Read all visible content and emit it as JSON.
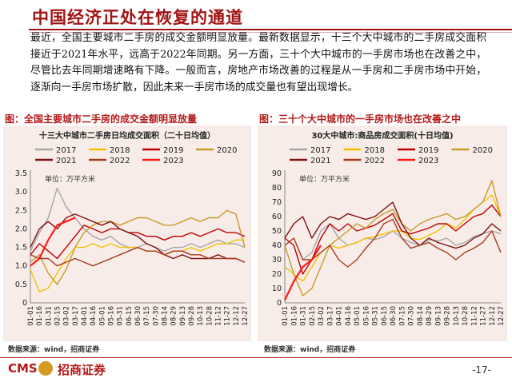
{
  "page": {
    "title": "中国经济正处在恢复的通道",
    "body": "最近，全国主要城市二手房的成交金额明显放量。最新数据显示，十三个大中城市的二手房成交面积接近于2021年水平，远高于2022年同期。另一方面，三十个大中城市的一手房市场也在改善之中，尽管比去年同期增速略有下降。一般而言，房地产市场改善的过程是从一手房和二手房市场中开始，逐渐向一手房市场扩散，因此未来一手房市场的成交量也有望出现增长。",
    "page_number": "-17-"
  },
  "footer": {
    "logo_text": "CMS",
    "logo_cn": "招商证券"
  },
  "left_panel": {
    "caption": "图：全国主要城市二手房的成交金额明显放量",
    "source": "数据来源：wind，招商证券"
  },
  "right_panel": {
    "caption": "图：三十个大中城市的一手房市场也在改善之中",
    "source": "数据来源：wind，招商证券"
  },
  "colors": {
    "2017": "#a6a6a6",
    "2018": "#f2c200",
    "2019": "#c00000",
    "2020": "#c89a2b",
    "2021": "#7f1212",
    "2022": "#a63a20",
    "2023": "#ff1a1a"
  },
  "chart_data": [
    {
      "type": "line",
      "title": "十三大中城市二手房日均成交面积（二十日均值）",
      "unit_label": "单位：万平方米",
      "ylim": [
        0,
        3.5
      ],
      "yticks": [
        "0",
        "0.5",
        "1.0",
        "1.5",
        "2.0",
        "2.5",
        "3.0",
        "3.5"
      ],
      "x_ticks": [
        "01-01",
        "01-16",
        "01-31",
        "02-15",
        "03-02",
        "03-17",
        "04-01",
        "04-16",
        "05-01",
        "05-16",
        "05-31",
        "06-15",
        "06-30",
        "07-15",
        "07-30",
        "08-14",
        "08-29",
        "09-13",
        "09-28",
        "10-13",
        "10-28",
        "11-12",
        "11-27",
        "12-12",
        "12-27"
      ],
      "series": [
        {
          "name": "2017",
          "values": [
            1.4,
            1.9,
            2.3,
            3.1,
            2.6,
            2.3,
            2.0,
            1.8,
            1.7,
            1.8,
            1.6,
            1.5,
            1.5,
            1.6,
            1.5,
            1.4,
            1.5,
            1.5,
            1.6,
            1.5,
            1.6,
            1.7,
            1.6,
            1.6,
            1.5
          ]
        },
        {
          "name": "2018",
          "values": [
            0.9,
            0.3,
            0.4,
            0.8,
            1.2,
            1.5,
            1.5,
            1.6,
            1.5,
            1.6,
            1.5,
            1.5,
            1.5,
            1.4,
            1.4,
            1.3,
            1.4,
            1.4,
            1.5,
            1.4,
            1.5,
            1.6,
            1.6,
            1.7,
            1.7
          ]
        },
        {
          "name": "2019",
          "values": [
            1.3,
            1.6,
            1.4,
            1.2,
            1.5,
            1.8,
            2.1,
            2.0,
            1.9,
            2.0,
            2.0,
            1.9,
            1.9,
            1.8,
            1.8,
            1.7,
            1.8,
            1.8,
            1.9,
            1.8,
            1.9,
            2.0,
            1.9,
            1.9,
            1.8
          ]
        },
        {
          "name": "2020",
          "values": [
            1.1,
            1.3,
            0.8,
            0.5,
            0.9,
            1.5,
            1.9,
            2.1,
            2.2,
            2.2,
            2.1,
            2.2,
            2.3,
            2.3,
            2.2,
            2.1,
            2.1,
            2.2,
            2.3,
            2.2,
            2.3,
            2.3,
            2.5,
            2.4,
            1.5
          ]
        },
        {
          "name": "2021",
          "values": [
            1.5,
            2.0,
            2.2,
            2.0,
            2.3,
            2.4,
            2.3,
            2.2,
            2.1,
            2.2,
            2.0,
            1.9,
            1.8,
            1.6,
            1.5,
            1.3,
            1.2,
            1.3,
            1.2,
            1.2,
            1.2,
            1.3,
            1.2,
            1.2,
            1.1
          ]
        },
        {
          "name": "2022",
          "values": [
            1.3,
            1.2,
            1.2,
            1.0,
            1.1,
            1.2,
            1.1,
            1.0,
            1.1,
            1.2,
            1.3,
            1.4,
            1.5,
            1.4,
            1.4,
            1.3,
            1.4,
            1.4,
            1.3,
            1.3,
            1.2,
            1.2,
            1.2,
            1.2,
            1.1
          ]
        },
        {
          "name": "2023",
          "values": [
            1.0,
            1.2,
            1.7,
            2.1,
            2.2,
            2.3
          ]
        }
      ]
    },
    {
      "type": "line",
      "title": "30大中城市:商品房成交面积(十日均值)",
      "unit_label": "单位：万平方米",
      "ylim": [
        0,
        90
      ],
      "yticks": [
        "0",
        "10",
        "20",
        "30",
        "40",
        "50",
        "60",
        "70",
        "80",
        "90"
      ],
      "x_ticks": [
        "01-01",
        "01-16",
        "01-31",
        "02-15",
        "03-02",
        "03-17",
        "04-01",
        "04-16",
        "05-01",
        "05-16",
        "05-31",
        "06-15",
        "06-30",
        "07-15",
        "07-30",
        "08-14",
        "08-29",
        "09-13",
        "09-28",
        "10-13",
        "10-28",
        "11-12",
        "11-27",
        "12-12",
        "12-27"
      ],
      "series": [
        {
          "name": "2017",
          "values": [
            40,
            45,
            30,
            35,
            50,
            55,
            45,
            40,
            42,
            45,
            44,
            46,
            50,
            45,
            42,
            40,
            44,
            43,
            45,
            40,
            42,
            46,
            48,
            50,
            48
          ]
        },
        {
          "name": "2018",
          "values": [
            25,
            20,
            15,
            25,
            35,
            40,
            38,
            40,
            42,
            45,
            46,
            48,
            50,
            50,
            45,
            44,
            47,
            50,
            55,
            52,
            58,
            65,
            70,
            75,
            60
          ]
        },
        {
          "name": "2019",
          "values": [
            45,
            40,
            20,
            30,
            45,
            55,
            50,
            55,
            50,
            52,
            54,
            58,
            62,
            50,
            48,
            50,
            52,
            55,
            55,
            50,
            55,
            60,
            62,
            68,
            60
          ]
        },
        {
          "name": "2020",
          "values": [
            40,
            20,
            5,
            10,
            25,
            40,
            45,
            50,
            55,
            52,
            58,
            62,
            65,
            55,
            50,
            55,
            58,
            60,
            62,
            58,
            60,
            65,
            70,
            85,
            60
          ]
        },
        {
          "name": "2021",
          "values": [
            45,
            55,
            60,
            45,
            55,
            60,
            58,
            62,
            60,
            58,
            60,
            65,
            70,
            55,
            45,
            40,
            45,
            42,
            40,
            38,
            40,
            45,
            48,
            55,
            50
          ]
        },
        {
          "name": "2022",
          "values": [
            40,
            45,
            30,
            30,
            35,
            40,
            30,
            25,
            30,
            38,
            45,
            55,
            58,
            45,
            38,
            40,
            42,
            38,
            35,
            30,
            35,
            38,
            42,
            50,
            35
          ]
        },
        {
          "name": "2023",
          "values": [
            2,
            15,
            25,
            30,
            40
          ]
        }
      ]
    }
  ]
}
